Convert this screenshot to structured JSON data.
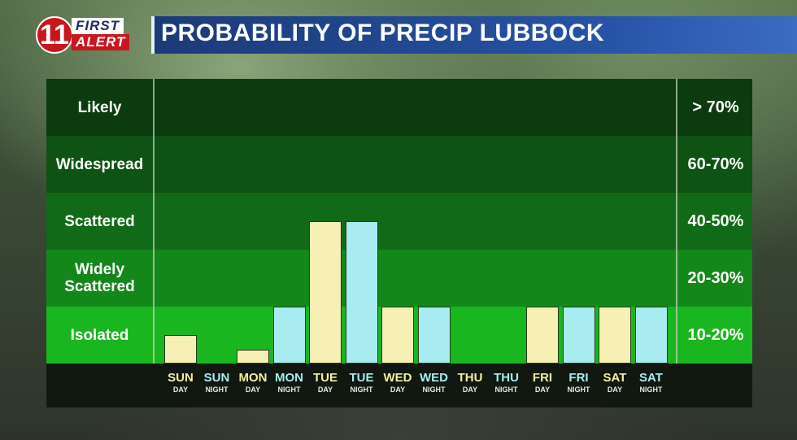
{
  "header": {
    "logo_number": "11",
    "logo_first": "FIRST",
    "logo_alert": "ALERT",
    "title": "PROBABILITY OF PRECIP LUBBOCK"
  },
  "chart_data": {
    "type": "bar",
    "title": "PROBABILITY OF PRECIP LUBBOCK",
    "bands": [
      {
        "label": "Likely",
        "range": "> 70%",
        "color": "#0c3b10"
      },
      {
        "label": "Widespread",
        "range": "60-70%",
        "color": "#0e5214"
      },
      {
        "label": "Scattered",
        "range": "40-50%",
        "color": "#116a17"
      },
      {
        "label": "Widely Scattered",
        "range": "20-30%",
        "color": "#14871b"
      },
      {
        "label": "Isolated",
        "range": "10-20%",
        "color": "#1ab61f"
      }
    ],
    "categories": [
      {
        "day": "SUN",
        "period": "DAY"
      },
      {
        "day": "SUN",
        "period": "NIGHT"
      },
      {
        "day": "MON",
        "period": "DAY"
      },
      {
        "day": "MON",
        "period": "NIGHT"
      },
      {
        "day": "TUE",
        "period": "DAY"
      },
      {
        "day": "TUE",
        "period": "NIGHT"
      },
      {
        "day": "WED",
        "period": "DAY"
      },
      {
        "day": "WED",
        "period": "NIGHT"
      },
      {
        "day": "THU",
        "period": "DAY"
      },
      {
        "day": "THU",
        "period": "NIGHT"
      },
      {
        "day": "FRI",
        "period": "DAY"
      },
      {
        "day": "FRI",
        "period": "NIGHT"
      },
      {
        "day": "SAT",
        "period": "DAY"
      },
      {
        "day": "SAT",
        "period": "NIGHT"
      }
    ],
    "values": [
      10,
      0,
      5,
      20,
      50,
      50,
      20,
      20,
      0,
      0,
      20,
      20,
      20,
      20
    ],
    "colors": {
      "day": "#f6f0b4",
      "night": "#a8ecf2",
      "day_label": "#f3eea0",
      "night_label": "#a8ecf2"
    }
  }
}
